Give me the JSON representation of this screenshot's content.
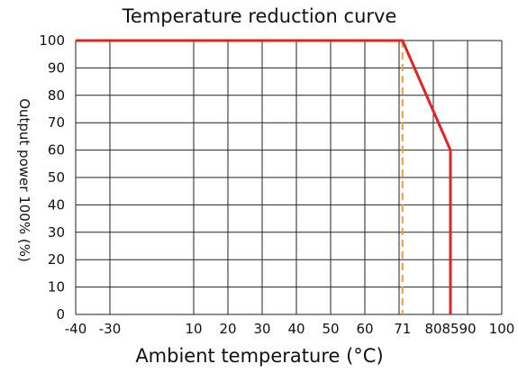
{
  "chart_data": {
    "type": "line",
    "title": "Temperature reduction curve",
    "xlabel": "Ambient temperature (°C)",
    "ylabel": "Output power 100% (%)",
    "xlim": [
      -40,
      100
    ],
    "ylim": [
      0,
      100
    ],
    "x_ticks": [
      -40,
      -30,
      10,
      20,
      30,
      40,
      50,
      60,
      71,
      80,
      85,
      90,
      100
    ],
    "x_tick_labels": [
      "-40",
      "-30",
      "10",
      "20",
      "30",
      "40",
      "50",
      "60",
      "71",
      "80",
      "85",
      "90",
      "100"
    ],
    "x_tick_highlight": [
      "71",
      "85"
    ],
    "y_ticks": [
      0,
      10,
      20,
      30,
      40,
      50,
      60,
      70,
      80,
      90,
      100
    ],
    "y_tick_labels": [
      "0",
      "10",
      "20",
      "30",
      "40",
      "50",
      "60",
      "70",
      "80",
      "90",
      "100"
    ],
    "grid": true,
    "series": [
      {
        "x": [
          -40,
          71,
          85,
          85
        ],
        "y": [
          100,
          100,
          60,
          0
        ],
        "color": "#e52222"
      }
    ],
    "reference_lines": [
      {
        "x": 71,
        "style": "dashed",
        "color": "#f0a030"
      }
    ],
    "highlight_color": "#e52222"
  }
}
